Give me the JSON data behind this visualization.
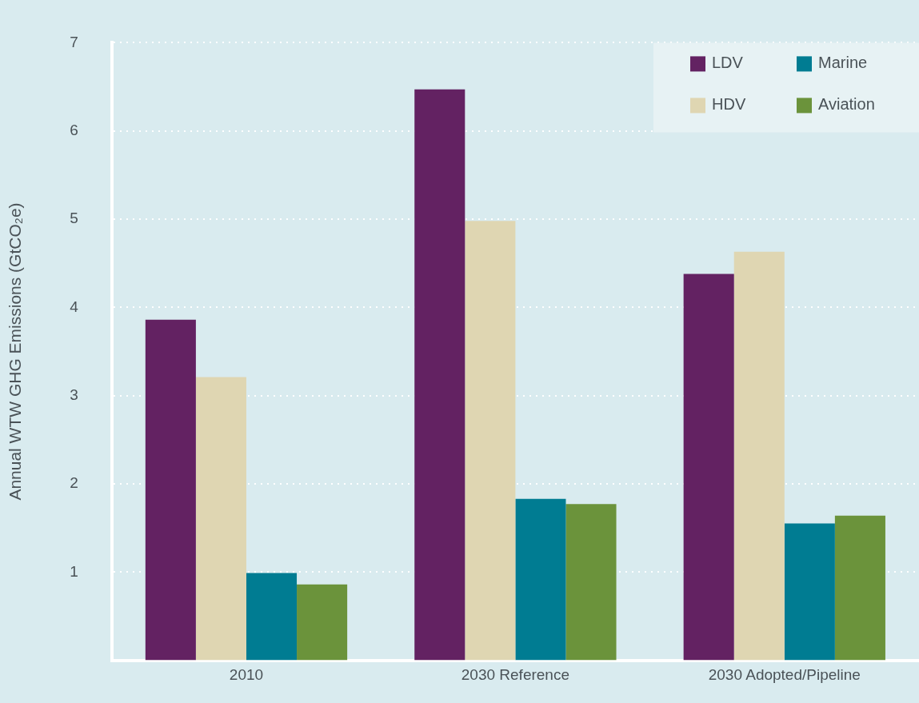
{
  "chart_data": {
    "type": "bar",
    "ylabel": "Annual WTW GHG Emissions (GtCO₂e)",
    "categories": [
      "2010",
      "2030 Reference",
      "2030 Adopted/Pipeline"
    ],
    "series": [
      {
        "name": "LDV",
        "color": "#632262",
        "values": [
          3.86,
          6.47,
          4.38
        ]
      },
      {
        "name": "HDV",
        "color": "#dfd6b2",
        "values": [
          3.21,
          4.98,
          4.63
        ]
      },
      {
        "name": "Marine",
        "color": "#007c92",
        "values": [
          0.99,
          1.83,
          1.55
        ]
      },
      {
        "name": "Aviation",
        "color": "#6b933b",
        "values": [
          0.86,
          1.77,
          1.64
        ]
      }
    ],
    "ylim": [
      0,
      7
    ],
    "yticks": [
      1,
      2,
      3,
      4,
      5,
      6,
      7
    ],
    "grid": "y",
    "legend": "top right"
  }
}
